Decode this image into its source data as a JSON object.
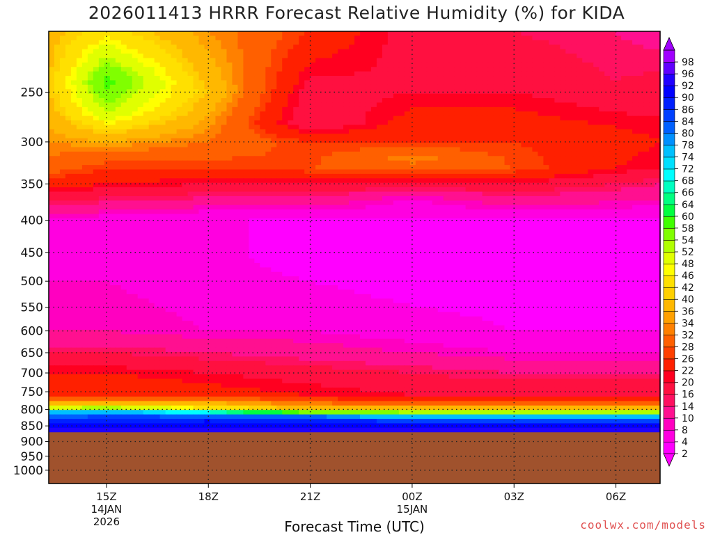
{
  "header": {
    "title": "2026011413 HRRR Forecast Relative Humidity (%) for KIDA"
  },
  "footer": {
    "watermark": "coolwx.com/models"
  },
  "chart_data": {
    "type": "heatmap",
    "title": "2026011413 HRRR Forecast Relative Humidity (%) for KIDA",
    "xlabel": "Forecast Time (UTC)",
    "ylabel": "",
    "x_hours_span": [
      13.3,
      31.3
    ],
    "x_ticks": [
      {
        "hour": 15,
        "label": "15Z",
        "sub": [
          "14JAN",
          "2026"
        ]
      },
      {
        "hour": 18,
        "label": "18Z",
        "sub": []
      },
      {
        "hour": 21,
        "label": "21Z",
        "sub": []
      },
      {
        "hour": 24,
        "label": "00Z",
        "sub": [
          "15JAN"
        ]
      },
      {
        "hour": 27,
        "label": "03Z",
        "sub": []
      },
      {
        "hour": 30,
        "label": "06Z",
        "sub": []
      }
    ],
    "y_scale": "log-pressure",
    "ylim_hpa": [
      1050,
      200
    ],
    "y_ticks": [
      250,
      300,
      350,
      400,
      450,
      500,
      550,
      600,
      650,
      700,
      750,
      800,
      850,
      900,
      950,
      1000
    ],
    "ground_level_hpa": 870,
    "grid": true,
    "colorbar": {
      "position": "right",
      "levels": [
        2,
        4,
        8,
        10,
        14,
        16,
        20,
        22,
        26,
        28,
        32,
        34,
        36,
        40,
        42,
        46,
        48,
        52,
        54,
        58,
        60,
        64,
        66,
        68,
        72,
        74,
        78,
        80,
        84,
        86,
        90,
        92,
        96,
        98
      ],
      "colors": [
        "#ff00ff",
        "#ff00e0",
        "#ff00c0",
        "#ff1090",
        "#ff1060",
        "#ff1040",
        "#ff0020",
        "#ff2000",
        "#ff4000",
        "#ff6000",
        "#ff8000",
        "#ffa000",
        "#ffb800",
        "#ffd000",
        "#ffe000",
        "#ffff00",
        "#e0ff00",
        "#b0ff00",
        "#80ff00",
        "#40ff00",
        "#00ff40",
        "#00ff80",
        "#00ffc0",
        "#00ffff",
        "#00e0ff",
        "#00c0ff",
        "#0090ff",
        "#0060ff",
        "#0040ff",
        "#0020ff",
        "#0000ff",
        "#2000ff",
        "#6000ff",
        "#a000ff"
      ],
      "ground_color": "#a0522d"
    },
    "rh_profiles": [
      {
        "hour": 13.3,
        "levels": [
          [
            200,
            38
          ],
          [
            250,
            40
          ],
          [
            300,
            34
          ],
          [
            330,
            30
          ],
          [
            350,
            24
          ],
          [
            400,
            8
          ],
          [
            500,
            8
          ],
          [
            600,
            10
          ],
          [
            650,
            16
          ],
          [
            700,
            22
          ],
          [
            760,
            26
          ],
          [
            790,
            40
          ],
          [
            810,
            78
          ],
          [
            830,
            86
          ],
          [
            850,
            92
          ],
          [
            865,
            96
          ]
        ]
      },
      {
        "hour": 15.0,
        "levels": [
          [
            200,
            44
          ],
          [
            240,
            60
          ],
          [
            270,
            52
          ],
          [
            300,
            36
          ],
          [
            330,
            26
          ],
          [
            350,
            22
          ],
          [
            400,
            6
          ],
          [
            500,
            8
          ],
          [
            600,
            10
          ],
          [
            650,
            16
          ],
          [
            700,
            22
          ],
          [
            760,
            26
          ],
          [
            790,
            44
          ],
          [
            810,
            80
          ],
          [
            830,
            88
          ],
          [
            850,
            92
          ],
          [
            865,
            96
          ]
        ]
      },
      {
        "hour": 18.0,
        "levels": [
          [
            200,
            34
          ],
          [
            250,
            40
          ],
          [
            300,
            32
          ],
          [
            330,
            26
          ],
          [
            350,
            20
          ],
          [
            400,
            4
          ],
          [
            500,
            6
          ],
          [
            600,
            8
          ],
          [
            650,
            14
          ],
          [
            700,
            20
          ],
          [
            760,
            24
          ],
          [
            795,
            44
          ],
          [
            815,
            80
          ],
          [
            835,
            90
          ],
          [
            850,
            92
          ],
          [
            865,
            96
          ]
        ]
      },
      {
        "hour": 21.0,
        "levels": [
          [
            200,
            26
          ],
          [
            250,
            18
          ],
          [
            280,
            16
          ],
          [
            300,
            26
          ],
          [
            330,
            28
          ],
          [
            350,
            20
          ],
          [
            400,
            4
          ],
          [
            460,
            2
          ],
          [
            500,
            4
          ],
          [
            600,
            8
          ],
          [
            650,
            12
          ],
          [
            700,
            18
          ],
          [
            760,
            22
          ],
          [
            800,
            40
          ],
          [
            820,
            80
          ],
          [
            840,
            90
          ],
          [
            855,
            92
          ],
          [
            865,
            96
          ]
        ]
      },
      {
        "hour": 24.0,
        "levels": [
          [
            200,
            18
          ],
          [
            250,
            20
          ],
          [
            300,
            26
          ],
          [
            320,
            34
          ],
          [
            340,
            24
          ],
          [
            370,
            8
          ],
          [
            400,
            4
          ],
          [
            450,
            2
          ],
          [
            500,
            2
          ],
          [
            600,
            6
          ],
          [
            650,
            10
          ],
          [
            700,
            16
          ],
          [
            760,
            20
          ],
          [
            800,
            40
          ],
          [
            825,
            80
          ],
          [
            845,
            90
          ],
          [
            855,
            92
          ],
          [
            865,
            96
          ]
        ]
      },
      {
        "hour": 27.0,
        "levels": [
          [
            200,
            16
          ],
          [
            250,
            20
          ],
          [
            300,
            26
          ],
          [
            330,
            28
          ],
          [
            360,
            16
          ],
          [
            400,
            4
          ],
          [
            450,
            2
          ],
          [
            500,
            2
          ],
          [
            600,
            4
          ],
          [
            650,
            8
          ],
          [
            700,
            14
          ],
          [
            760,
            20
          ],
          [
            800,
            40
          ],
          [
            825,
            80
          ],
          [
            845,
            90
          ],
          [
            858,
            92
          ],
          [
            865,
            96
          ]
        ]
      },
      {
        "hour": 30.0,
        "levels": [
          [
            200,
            14
          ],
          [
            240,
            16
          ],
          [
            270,
            20
          ],
          [
            300,
            24
          ],
          [
            330,
            22
          ],
          [
            350,
            16
          ],
          [
            400,
            4
          ],
          [
            500,
            2
          ],
          [
            600,
            4
          ],
          [
            650,
            8
          ],
          [
            700,
            14
          ],
          [
            760,
            20
          ],
          [
            800,
            40
          ],
          [
            825,
            80
          ],
          [
            845,
            90
          ],
          [
            858,
            92
          ],
          [
            865,
            96
          ]
        ]
      },
      {
        "hour": 31.3,
        "levels": [
          [
            200,
            12
          ],
          [
            250,
            18
          ],
          [
            300,
            22
          ],
          [
            330,
            20
          ],
          [
            350,
            14
          ],
          [
            400,
            4
          ],
          [
            500,
            2
          ],
          [
            600,
            4
          ],
          [
            650,
            8
          ],
          [
            700,
            14
          ],
          [
            760,
            20
          ],
          [
            800,
            40
          ],
          [
            825,
            80
          ],
          [
            845,
            90
          ],
          [
            858,
            92
          ],
          [
            865,
            96
          ]
        ]
      }
    ]
  }
}
